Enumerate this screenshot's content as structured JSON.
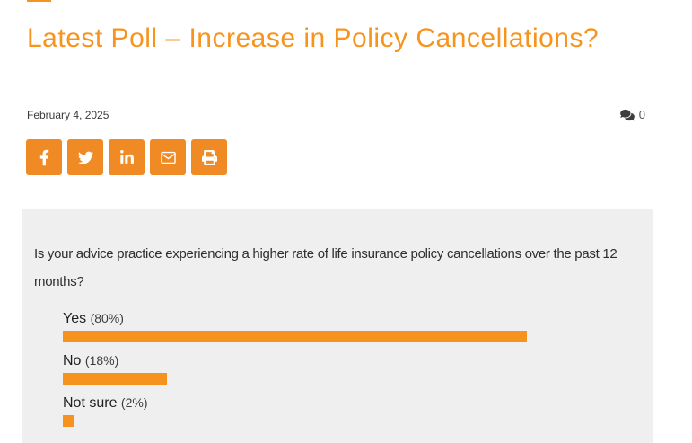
{
  "header": {
    "title": "Latest Poll – Increase in Policy Cancellations?",
    "date": "February 4, 2025",
    "comments_count": "0"
  },
  "share": {
    "buttons": [
      {
        "id": "facebook"
      },
      {
        "id": "twitter"
      },
      {
        "id": "linkedin"
      },
      {
        "id": "email"
      },
      {
        "id": "print"
      }
    ]
  },
  "poll": {
    "question": "Is your advice practice experiencing a higher rate of life insurance policy cancellations over the past 12 months?",
    "options": [
      {
        "label": "Yes",
        "percent_label": "(80%)",
        "percent": 80
      },
      {
        "label": "No",
        "percent_label": "(18%)",
        "percent": 18
      },
      {
        "label": "Not sure",
        "percent_label": "(2%)",
        "percent": 2
      }
    ]
  },
  "chart_data": {
    "type": "bar",
    "orientation": "horizontal",
    "title": "Is your advice practice experiencing a higher rate of life insurance policy cancellations over the past 12 months?",
    "categories": [
      "Yes",
      "No",
      "Not sure"
    ],
    "values": [
      80,
      18,
      2
    ],
    "unit": "percent",
    "xlim": [
      0,
      100
    ],
    "grid": false,
    "legend": false,
    "bar_color": "#f6921e"
  },
  "colors": {
    "title_orange": "#f7941e",
    "button_orange": "#f08a24",
    "bar_orange": "#f6921e",
    "poll_box_bg": "#efefef",
    "text_dark": "#2e2e2e",
    "meta_gray": "#555555"
  }
}
